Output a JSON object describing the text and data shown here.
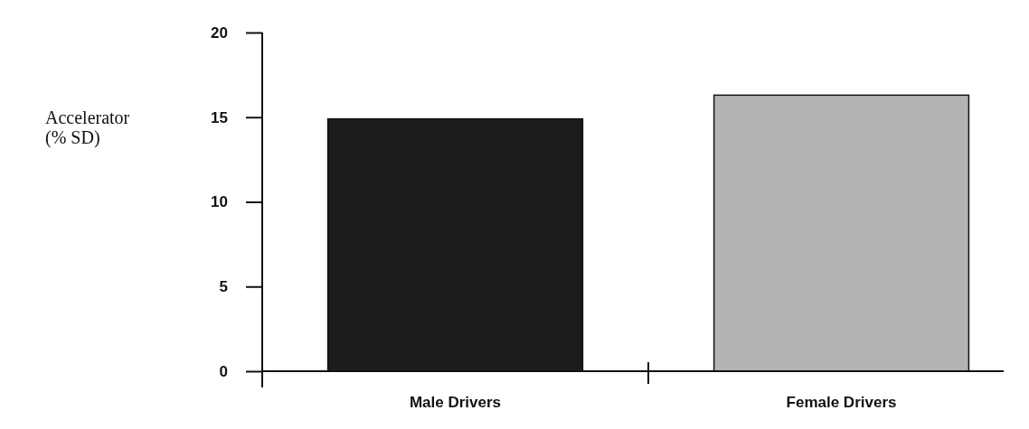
{
  "chart_data": {
    "type": "bar",
    "ylabel": "Accelerator (% SD)",
    "categories": [
      "Male Drivers",
      "Female Drivers"
    ],
    "values": [
      14.9,
      16.3
    ],
    "colors": [
      "#1c1c1c",
      "#b4b4b4"
    ],
    "ylim": [
      0,
      20
    ],
    "yticks": [
      0,
      5,
      10,
      15,
      20
    ],
    "grid": false
  }
}
